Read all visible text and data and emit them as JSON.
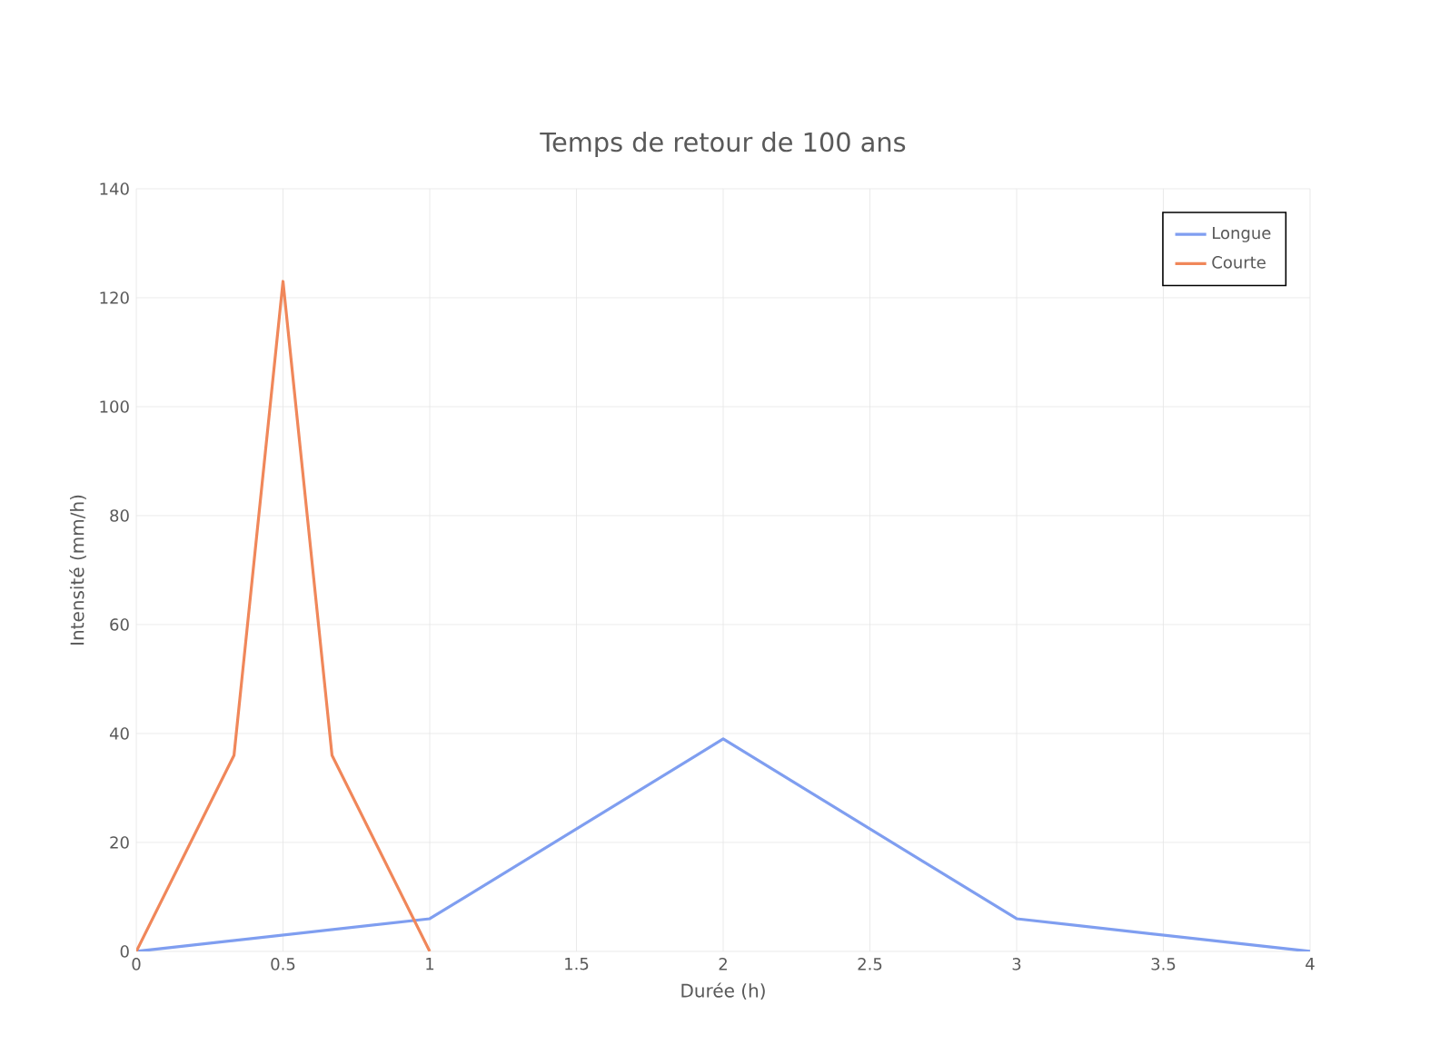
{
  "chart_data": {
    "type": "line",
    "title": "Temps de retour de 100 ans",
    "xlabel": "Durée (h)",
    "ylabel": "Intensité (mm/h)",
    "xlim": [
      0,
      4
    ],
    "xticks": [
      0,
      0.5,
      1,
      1.5,
      2,
      2.5,
      3,
      3.5,
      4
    ],
    "ylim": [
      0,
      140
    ],
    "yticks": [
      0,
      20,
      40,
      60,
      80,
      100,
      120,
      140
    ],
    "grid": true,
    "legend": "top right",
    "series": [
      {
        "name": "Longue",
        "color": "#7f9ef0",
        "x": [
          0,
          1,
          2,
          3,
          4
        ],
        "values": [
          0,
          6,
          39,
          6,
          0
        ]
      },
      {
        "name": "Courte",
        "color": "#f0875a",
        "x": [
          0,
          0.333,
          0.5,
          0.667,
          1
        ],
        "values": [
          0,
          36,
          123,
          36,
          0
        ]
      }
    ]
  }
}
